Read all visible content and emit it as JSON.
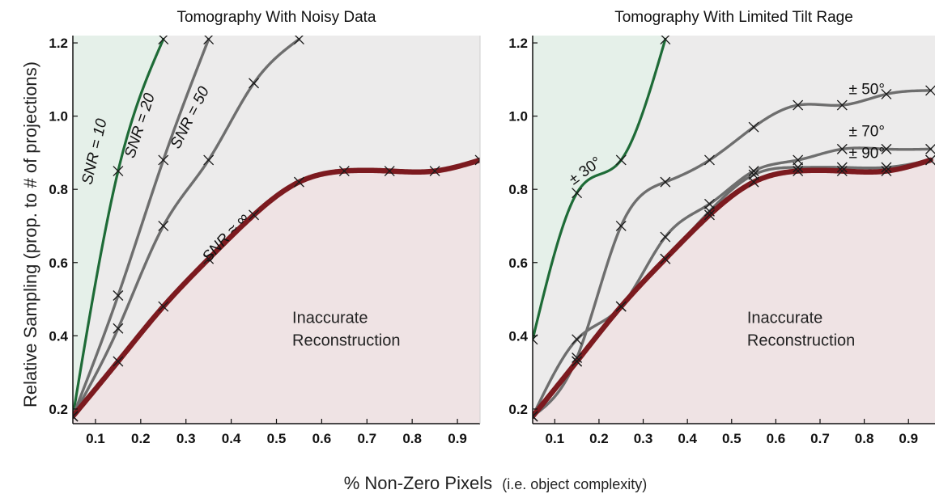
{
  "x_axis_label": "% Non-Zero Pixels",
  "x_axis_label_note": "(i.e. object complexity)",
  "y_axis_label": "Relative Sampling (prop. to # of projections)",
  "colors": {
    "green": "#1e6b37",
    "gray": "#6e6e6e",
    "red": "#7c1a1f",
    "region_green": "#e5f0e9",
    "region_gray": "#ecebeb",
    "region_red": "#efe3e4"
  },
  "chart_data": [
    {
      "type": "line",
      "title": "Tomography With Noisy Data",
      "xlim": [
        0.05,
        0.95
      ],
      "ylim": [
        0.16,
        1.22
      ],
      "xticks": [
        "0.1",
        "0.2",
        "0.3",
        "0.4",
        "0.5",
        "0.6",
        "0.7",
        "0.8",
        "0.9"
      ],
      "yticks": [
        "0.2",
        "0.4",
        "0.6",
        "0.8",
        "1.0",
        "1.2"
      ],
      "grid": false,
      "region_label": [
        "Inaccurate",
        "Reconstruction"
      ],
      "series": [
        {
          "name": "SNR = 10",
          "color": "green",
          "x": [
            0.05,
            0.15,
            0.25
          ],
          "y": [
            0.18,
            0.85,
            1.21
          ]
        },
        {
          "name": "SNR = 20",
          "color": "gray",
          "x": [
            0.05,
            0.15,
            0.25,
            0.35
          ],
          "y": [
            0.18,
            0.51,
            0.88,
            1.21
          ]
        },
        {
          "name": "SNR = 50",
          "color": "gray",
          "x": [
            0.05,
            0.15,
            0.25,
            0.35,
            0.45,
            0.55
          ],
          "y": [
            0.18,
            0.42,
            0.7,
            0.88,
            1.09,
            1.21
          ]
        },
        {
          "name": "SNR ≈ ∞",
          "color": "red",
          "x": [
            0.05,
            0.15,
            0.25,
            0.35,
            0.45,
            0.55,
            0.65,
            0.75,
            0.85,
            0.95
          ],
          "y": [
            0.18,
            0.33,
            0.48,
            0.61,
            0.73,
            0.82,
            0.85,
            0.85,
            0.85,
            0.88
          ]
        }
      ]
    },
    {
      "type": "line",
      "title": "Tomography With Limited Tilt Rage",
      "xlim": [
        0.05,
        0.96
      ],
      "ylim": [
        0.16,
        1.22
      ],
      "xticks": [
        "0.1",
        "0.2",
        "0.3",
        "0.4",
        "0.5",
        "0.6",
        "0.7",
        "0.8",
        "0.9"
      ],
      "yticks": [
        "0.2",
        "0.4",
        "0.6",
        "0.8",
        "1.0",
        "1.2"
      ],
      "grid": false,
      "region_label": [
        "Inaccurate",
        "Reconstruction"
      ],
      "series": [
        {
          "name": "± 30°",
          "color": "green",
          "x": [
            0.05,
            0.15,
            0.25,
            0.35
          ],
          "y": [
            0.39,
            0.79,
            0.88,
            1.21
          ]
        },
        {
          "name": "± 50°",
          "color": "gray",
          "x": [
            0.05,
            0.15,
            0.25,
            0.35,
            0.45,
            0.55,
            0.65,
            0.75,
            0.85,
            0.95
          ],
          "y": [
            0.18,
            0.34,
            0.7,
            0.82,
            0.88,
            0.97,
            1.03,
            1.03,
            1.06,
            1.07
          ]
        },
        {
          "name": "± 70°",
          "color": "gray",
          "x": [
            0.05,
            0.15,
            0.25,
            0.35,
            0.45,
            0.55,
            0.65,
            0.75,
            0.85,
            0.95
          ],
          "y": [
            0.18,
            0.39,
            0.48,
            0.67,
            0.76,
            0.85,
            0.88,
            0.91,
            0.91,
            0.91
          ]
        },
        {
          "name": "± 90°",
          "color": "gray",
          "x": [
            0.05,
            0.15,
            0.25,
            0.35,
            0.45,
            0.55,
            0.65,
            0.75,
            0.85,
            0.95
          ],
          "y": [
            0.18,
            0.33,
            0.48,
            0.61,
            0.74,
            0.84,
            0.86,
            0.86,
            0.86,
            0.88
          ]
        },
        {
          "name": "",
          "color": "red",
          "x": [
            0.05,
            0.15,
            0.25,
            0.35,
            0.45,
            0.55,
            0.65,
            0.75,
            0.85,
            0.95
          ],
          "y": [
            0.18,
            0.33,
            0.48,
            0.61,
            0.73,
            0.82,
            0.85,
            0.85,
            0.85,
            0.88
          ]
        }
      ]
    }
  ]
}
